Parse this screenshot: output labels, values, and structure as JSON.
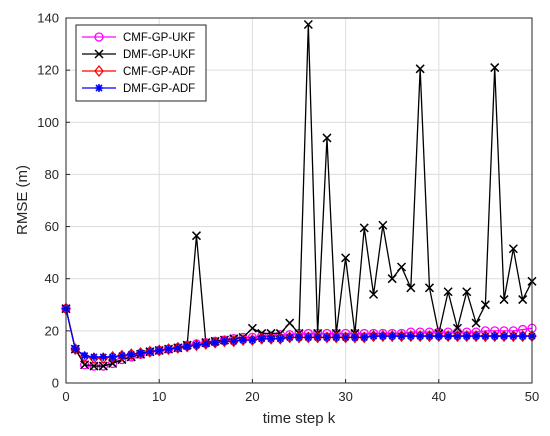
{
  "chart_data": {
    "type": "line",
    "title": "",
    "xlabel": "time step k",
    "ylabel": "RMSE (m)",
    "xlim": [
      0,
      50
    ],
    "ylim": [
      0,
      140
    ],
    "xticks": [
      0,
      10,
      20,
      30,
      40,
      50
    ],
    "yticks": [
      0,
      20,
      40,
      60,
      80,
      100,
      120,
      140
    ],
    "grid": true,
    "legend_position": "top-left",
    "x": [
      0,
      1,
      2,
      3,
      4,
      5,
      6,
      7,
      8,
      9,
      10,
      11,
      12,
      13,
      14,
      15,
      16,
      17,
      18,
      19,
      20,
      21,
      22,
      23,
      24,
      25,
      26,
      27,
      28,
      29,
      30,
      31,
      32,
      33,
      34,
      35,
      36,
      37,
      38,
      39,
      40,
      41,
      42,
      43,
      44,
      45,
      46,
      47,
      48,
      49,
      50
    ],
    "series": [
      {
        "name": "CMF-GP-UKF",
        "color": "#ff00ff",
        "marker": "circle",
        "values": [
          28.5,
          13,
          7,
          6.5,
          6.5,
          7.5,
          9,
          10,
          11,
          12,
          12.5,
          13,
          13.5,
          14.5,
          15,
          15.5,
          16,
          16.5,
          17,
          17.5,
          17.5,
          18,
          18,
          18.5,
          18.5,
          19,
          19,
          19,
          19,
          19,
          19,
          19,
          19,
          19,
          19,
          19,
          19,
          19.5,
          19.5,
          19.5,
          19.5,
          19.5,
          19.5,
          19.5,
          19.5,
          20,
          20,
          20,
          20,
          20.5,
          21
        ]
      },
      {
        "name": "DMF-GP-UKF",
        "color": "#000000",
        "marker": "x",
        "values": [
          28.5,
          13,
          7,
          6.5,
          6.5,
          7.5,
          9,
          10,
          11,
          12,
          12.5,
          13,
          13.5,
          14.5,
          56.5,
          15.5,
          16,
          16.5,
          17,
          17.5,
          21,
          19,
          19,
          19,
          23,
          19,
          137.5,
          19,
          94,
          19,
          48,
          19,
          59.5,
          34,
          60.5,
          40,
          44.5,
          36.5,
          120.5,
          36.5,
          19,
          35,
          21,
          35,
          23,
          30,
          121,
          32,
          51.5,
          32,
          39
        ]
      },
      {
        "name": "CMF-GP-ADF",
        "color": "#ff0000",
        "marker": "diamond",
        "values": [
          28.5,
          13,
          10,
          9.5,
          9.5,
          10,
          10.5,
          11,
          11.5,
          12,
          12.5,
          13,
          13.5,
          14,
          14.5,
          15,
          15.5,
          16,
          16,
          16.5,
          16.5,
          17,
          17,
          17,
          17.5,
          17.5,
          17.5,
          17.5,
          17.5,
          17.5,
          17.5,
          17.5,
          17.5,
          18,
          18,
          18,
          18,
          18,
          18,
          18,
          18,
          18,
          18,
          18,
          18,
          18,
          18,
          18,
          18,
          18,
          18
        ]
      },
      {
        "name": "DMF-GP-ADF",
        "color": "#0000ff",
        "marker": "star",
        "values": [
          28.5,
          13,
          10.5,
          10,
          10,
          10,
          10.5,
          11,
          11.5,
          12,
          12.5,
          13,
          13.5,
          14,
          14.5,
          15,
          15.5,
          16,
          16,
          16.5,
          16.5,
          17,
          17,
          17,
          17.5,
          17.5,
          17.5,
          17.5,
          17.5,
          17.5,
          17.5,
          17.5,
          17.5,
          18,
          18,
          18,
          18,
          18,
          18,
          18,
          18,
          18,
          18,
          18,
          18,
          18,
          18,
          18,
          18,
          18,
          18
        ]
      }
    ]
  }
}
